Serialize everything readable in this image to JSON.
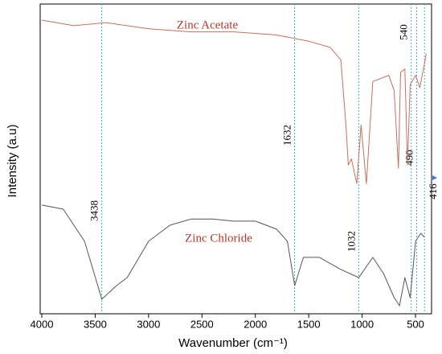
{
  "chart_data": {
    "type": "line",
    "x_label": "Wavenumber (cm⁻¹)",
    "y_label": "Intensity (a.u)",
    "xlim": [
      4000,
      350
    ],
    "ylim": [
      0,
      100
    ],
    "xticks": [
      4000,
      3500,
      3000,
      2500,
      2000,
      1500,
      1000,
      500
    ],
    "markers": [
      3438,
      1632,
      1032,
      540,
      490,
      416
    ],
    "marker_color": "#33bbbb",
    "series": [
      {
        "name": "Zinc Acetate",
        "color": "#c8705a",
        "x": [
          4000,
          3700,
          3400,
          3000,
          2600,
          2200,
          1800,
          1500,
          1300,
          1200,
          1150,
          1130,
          1100,
          1050,
          1010,
          960,
          900,
          750,
          700,
          660,
          640,
          600,
          575,
          550,
          500,
          460,
          420,
          400
        ],
        "values": [
          94.8,
          93,
          94,
          92,
          91,
          91,
          90,
          88,
          86,
          82,
          60,
          48,
          50,
          42,
          61,
          42,
          75,
          77,
          72,
          47,
          78,
          79,
          48,
          74,
          77,
          73,
          80,
          84
        ]
      },
      {
        "name": "Zinc Chloride",
        "color": "#555555",
        "x": [
          4000,
          3800,
          3600,
          3438,
          3300,
          3200,
          3000,
          2800,
          2600,
          2400,
          2200,
          2000,
          1800,
          1700,
          1632,
          1550,
          1400,
          1200,
          1032,
          900,
          800,
          700,
          650,
          600,
          550,
          500,
          450,
          416
        ],
        "values": [
          35.1,
          33.8,
          23.4,
          4.7,
          9.1,
          11.7,
          23.4,
          28.6,
          30.6,
          30.6,
          29.9,
          29.9,
          27.3,
          23.4,
          9.1,
          18.2,
          18.2,
          14.3,
          11.7,
          18.2,
          13,
          5.2,
          2.6,
          11.7,
          5.2,
          23.4,
          26,
          24.7
        ]
      }
    ]
  }
}
